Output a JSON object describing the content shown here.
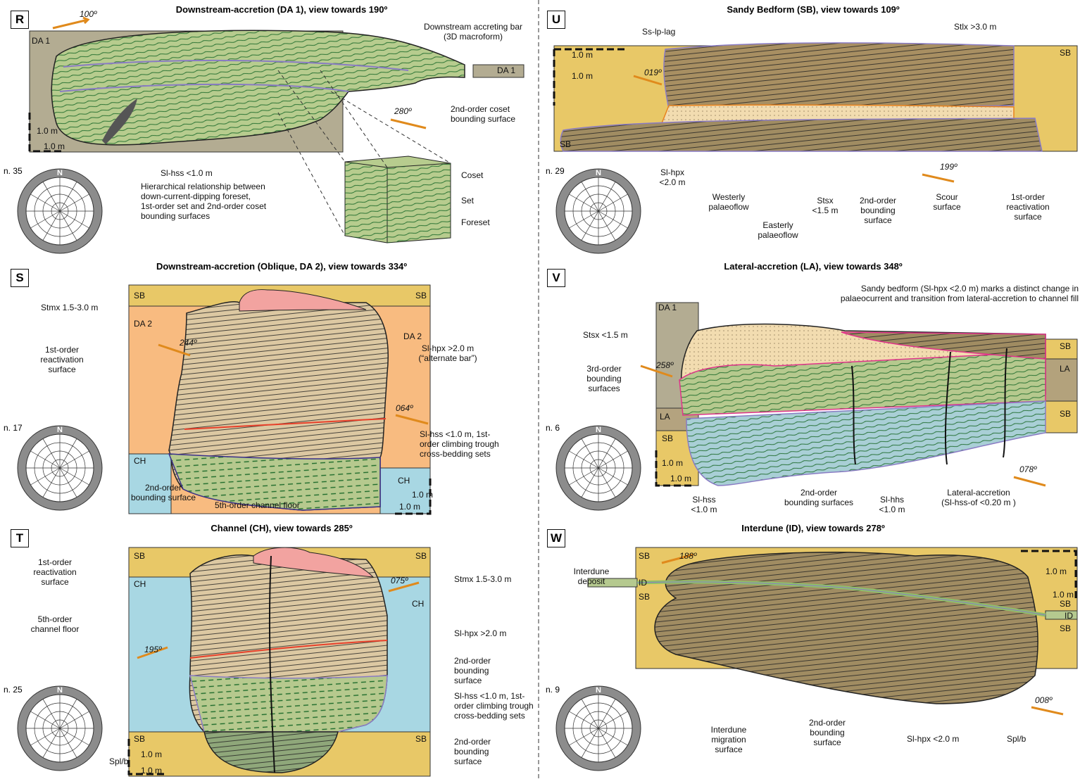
{
  "panels": [
    {
      "letter": "R",
      "title": "Downstream-accretion (DA 1), view towards 190º",
      "count": "n. 35",
      "rose_label": "N",
      "labels": [
        "100º",
        "DA 1",
        "Downstream accreting bar\n(3D macroform)",
        "DA 1",
        "280º",
        "2nd-order coset\nbounding surface",
        "1.0 m",
        "1.0 m",
        "Sl-hss <1.0 m",
        "Hierarchical relationship between\ndown-current-dipping foreset,\n1st-order set and 2nd-order coset\nbounding surfaces",
        "Coset",
        "Set",
        "Foreset"
      ]
    },
    {
      "letter": "S",
      "title": "Downstream-accretion (Oblique, DA 2), view towards 334º",
      "count": "n. 17",
      "rose_label": "N",
      "labels": [
        "SB",
        "SB",
        "Stmx 1.5-3.0 m",
        "DA 2",
        "DA 2",
        "244º",
        "1st-order\nreactivation\nsurface",
        "Sl-hpx >2.0 m\n(“alternate bar”)",
        "064º",
        "CH",
        "Sl-hss <1.0 m, 1st-\norder climbing trough\ncross-bedding sets",
        "CH",
        "1.0 m",
        "1.0 m",
        "2nd-order\nbounding surface",
        "5th-order channel floor"
      ]
    },
    {
      "letter": "T",
      "title": "Channel (CH), view towards 285º",
      "count": "n. 25",
      "rose_label": "N",
      "labels": [
        "SB",
        "SB",
        "1st-order\nreactivation\nsurface",
        "Stmx 1.5-3.0 m",
        "CH",
        "075º",
        "5th-order\nchannel floor",
        "CH",
        "Sl-hpx >2.0 m",
        "195º",
        "2nd-order\nbounding\nsurface",
        "Sl-hss <1.0 m, 1st-\norder climbing trough\ncross-bedding sets",
        "SB",
        "SB",
        "1.0 m",
        "Spl/b",
        "1.0 m",
        "2nd-order\nbounding\nsurface"
      ]
    },
    {
      "letter": "U",
      "title": "Sandy Bedform (SB), view towards 109º",
      "count": "n. 29",
      "rose_label": "N",
      "labels": [
        "Ss-lp-lag",
        "Stlx >3.0 m",
        "1.0 m",
        "SB",
        "1.0 m",
        "019º",
        "SB",
        "Sl-hpx\n<2.0 m",
        "Westerly\npalaeoflow",
        "Stsx\n<1.5 m",
        "2nd-order\nbounding\nsurface",
        "Scour\nsurface",
        "199º",
        "1st-order\nreactivation\nsurface",
        "Easterly\npalaeoflow"
      ]
    },
    {
      "letter": "V",
      "title": "Lateral-accretion (LA), view towards 348º",
      "count": "n. 6",
      "rose_label": "N",
      "labels": [
        "Sandy bedform (Sl-hpx <2.0 m) marks a distinct change in\npalaeocurrent and transition from lateral-accretion to channel fill",
        "DA 1",
        "Stsx <1.5 m",
        "SB",
        "258º",
        "3rd-order\nbounding\nsurfaces",
        "LA",
        "SB",
        "LA",
        "SB",
        "1.0 m",
        "1.0 m",
        "078º",
        "Sl-hss\n<1.0 m",
        "2nd-order\nbounding surfaces",
        "Sl-hhs\n<1.0 m",
        "Lateral-accretion\n(Sl-hss-of <0.20 m )"
      ]
    },
    {
      "letter": "W",
      "title": "Interdune (ID), view towards 278º",
      "count": "n. 9",
      "rose_label": "N",
      "labels": [
        "SB",
        "188º",
        "1.0 m",
        "Interdune\ndeposit",
        "1.0 m",
        "ID",
        "SB",
        "SB",
        "ID",
        "SB",
        "008º",
        "Interdune\nmigration\nsurface",
        "2nd-order\nbounding\nsurface",
        "Sl-hpx <2.0 m",
        "Spl/b"
      ]
    }
  ]
}
